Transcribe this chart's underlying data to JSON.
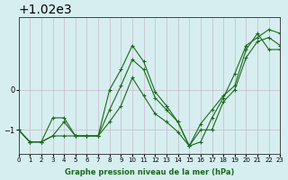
{
  "background_color": "#d6eef0",
  "grid_color": "#c8b8c8",
  "line_color": "#1a6b1a",
  "title": "Graphe pression niveau de la mer (hPa)",
  "xlabel": "Graphe pression niveau de la mer (hPa)",
  "ylim": [
    1018.4,
    1021.8
  ],
  "xlim": [
    0,
    23
  ],
  "yticks": [
    1019,
    1020
  ],
  "xticks": [
    0,
    1,
    2,
    3,
    4,
    5,
    6,
    7,
    8,
    9,
    10,
    11,
    12,
    13,
    14,
    15,
    16,
    17,
    18,
    19,
    20,
    21,
    22,
    23
  ],
  "series": [
    [
      1019.0,
      1018.7,
      1018.7,
      1018.85,
      1018.85,
      1018.85,
      1018.85,
      1018.85,
      1019.5,
      1020.1,
      1020.75,
      1020.5,
      1019.8,
      1019.5,
      1019.2,
      1018.6,
      1019.0,
      1019.0,
      1019.7,
      1020.0,
      1020.8,
      1021.2,
      1021.3,
      1021.1
    ],
    [
      1019.0,
      1018.7,
      1018.7,
      1018.85,
      1019.2,
      1018.85,
      1018.85,
      1018.85,
      1019.2,
      1019.6,
      1020.3,
      1019.85,
      1019.4,
      1019.2,
      1018.95,
      1018.6,
      1019.15,
      1019.5,
      1019.85,
      1020.1,
      1021.0,
      1021.4,
      1021.0,
      1021.0
    ],
    [
      1019.0,
      1018.7,
      1018.7,
      1019.3,
      1019.3,
      1018.85,
      1018.85,
      1018.85,
      1020.0,
      1020.5,
      1021.1,
      1020.7,
      1019.95,
      1019.6,
      1019.2,
      1018.6,
      1018.7,
      1019.3,
      1019.8,
      1020.4,
      1021.1,
      1021.3,
      1021.5,
      1021.4
    ]
  ]
}
